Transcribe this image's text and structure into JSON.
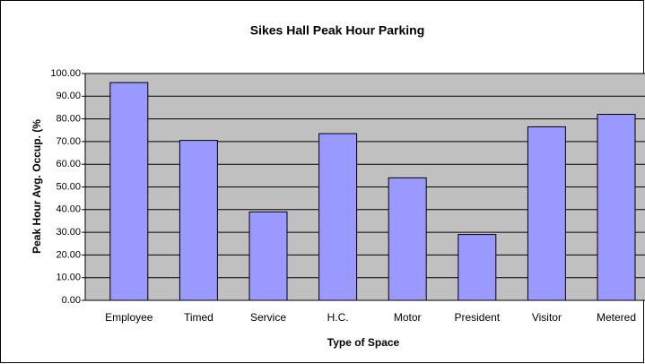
{
  "chart_data": {
    "type": "bar",
    "title": "Sikes Hall Peak Hour Parking",
    "xlabel": "Type of Space",
    "ylabel": "Peak Hour Avg. Occup. (%",
    "categories": [
      "Employee",
      "Timed",
      "Service",
      "H.C.",
      "Motor",
      "President",
      "Visitor",
      "Metered"
    ],
    "values": [
      96,
      70.5,
      39,
      73.5,
      54,
      29,
      76.5,
      82
    ],
    "color": "#9999ff",
    "ylim": [
      0,
      100
    ],
    "yticks": [
      {
        "value": 0,
        "label": "0.00"
      },
      {
        "value": 10,
        "label": "10.00"
      },
      {
        "value": 20,
        "label": "20.00"
      },
      {
        "value": 30,
        "label": "30.00"
      },
      {
        "value": 40,
        "label": "40.00"
      },
      {
        "value": 50,
        "label": "50.00"
      },
      {
        "value": 60,
        "label": "60.00"
      },
      {
        "value": 70,
        "label": "70.00"
      },
      {
        "value": 80,
        "label": "80.00"
      },
      {
        "value": 90,
        "label": "90.00"
      },
      {
        "value": 100,
        "label": "100.00"
      }
    ],
    "grid": true
  }
}
